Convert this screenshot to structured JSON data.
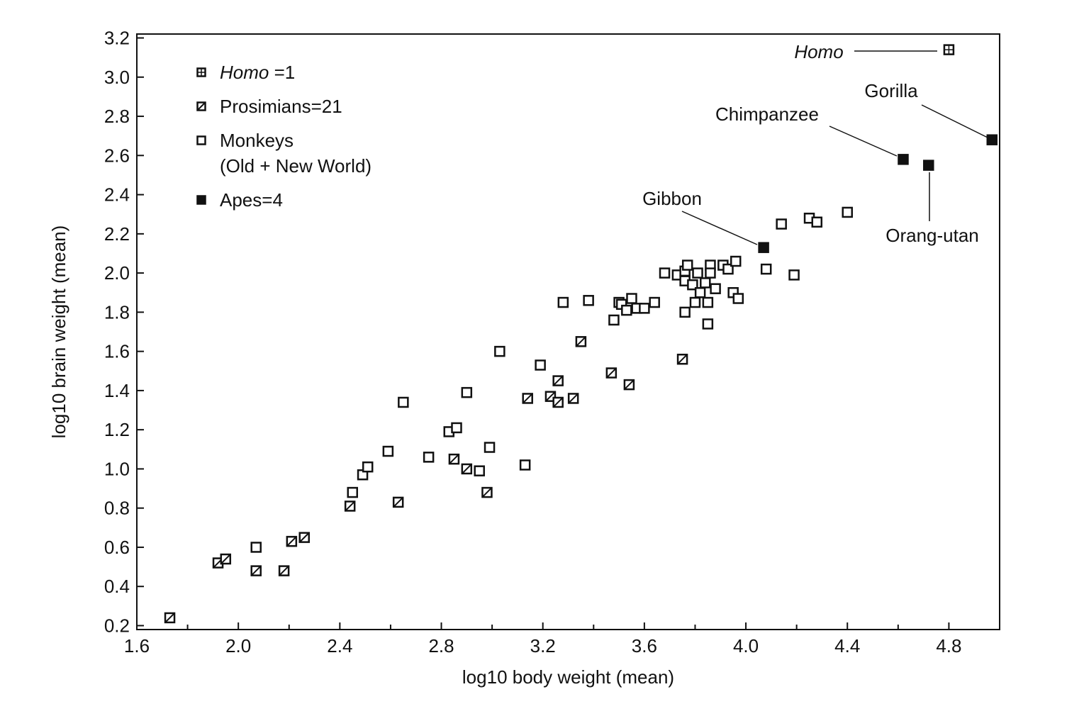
{
  "chart_data": {
    "type": "scatter",
    "title": "",
    "xlabel": "log10 body weight (mean)",
    "ylabel": "log10 brain weight (mean)",
    "xlim": [
      1.6,
      5.0
    ],
    "ylim": [
      0.18,
      3.22
    ],
    "xticks": [
      "1.6",
      "2.0",
      "2.4",
      "2.8",
      "3.2",
      "3.6",
      "4.0",
      "4.4",
      "4.8"
    ],
    "yticks": [
      "0.2",
      "0.4",
      "0.6",
      "0.8",
      "1.0",
      "1.2",
      "1.4",
      "1.6",
      "1.8",
      "2.0",
      "2.2",
      "2.4",
      "2.6",
      "2.8",
      "3.0",
      "3.2"
    ],
    "grid": false,
    "legend_placement": "top-left",
    "legend": [
      {
        "marker": "crossed-square",
        "italic": "Homo",
        "text": " =1"
      },
      {
        "marker": "hatched-square",
        "italic": "",
        "text": "Prosimians=21"
      },
      {
        "marker": "open-square",
        "italic": "",
        "text": "Monkeys",
        "text2": "(Old + New World)"
      },
      {
        "marker": "filled-square",
        "italic": "",
        "text": "Apes=4"
      }
    ],
    "series": [
      {
        "name": "Homo",
        "marker": "crossed-square",
        "points": [
          [
            4.8,
            3.14
          ]
        ]
      },
      {
        "name": "Prosimians",
        "marker": "hatched-square",
        "points": [
          [
            1.73,
            0.24
          ],
          [
            1.92,
            0.52
          ],
          [
            1.95,
            0.54
          ],
          [
            2.07,
            0.48
          ],
          [
            2.18,
            0.48
          ],
          [
            2.21,
            0.63
          ],
          [
            2.26,
            0.65
          ],
          [
            2.44,
            0.81
          ],
          [
            2.63,
            0.83
          ],
          [
            2.85,
            1.05
          ],
          [
            2.9,
            1.0
          ],
          [
            2.98,
            0.88
          ],
          [
            3.14,
            1.36
          ],
          [
            3.23,
            1.37
          ],
          [
            3.26,
            1.34
          ],
          [
            3.26,
            1.45
          ],
          [
            3.32,
            1.36
          ],
          [
            3.35,
            1.65
          ],
          [
            3.47,
            1.49
          ],
          [
            3.54,
            1.43
          ],
          [
            3.75,
            1.56
          ]
        ]
      },
      {
        "name": "Monkeys",
        "marker": "open-square",
        "points": [
          [
            2.07,
            0.6
          ],
          [
            2.45,
            0.88
          ],
          [
            2.49,
            0.97
          ],
          [
            2.51,
            1.01
          ],
          [
            2.59,
            1.09
          ],
          [
            2.65,
            1.34
          ],
          [
            2.75,
            1.06
          ],
          [
            2.83,
            1.19
          ],
          [
            2.86,
            1.21
          ],
          [
            2.9,
            1.39
          ],
          [
            2.95,
            0.99
          ],
          [
            2.99,
            1.11
          ],
          [
            3.03,
            1.6
          ],
          [
            3.13,
            1.02
          ],
          [
            3.19,
            1.53
          ],
          [
            3.28,
            1.85
          ],
          [
            3.38,
            1.86
          ],
          [
            3.48,
            1.76
          ],
          [
            3.5,
            1.85
          ],
          [
            3.51,
            1.84
          ],
          [
            3.53,
            1.81
          ],
          [
            3.55,
            1.87
          ],
          [
            3.57,
            1.82
          ],
          [
            3.6,
            1.82
          ],
          [
            3.64,
            1.85
          ],
          [
            3.68,
            2.0
          ],
          [
            3.73,
            1.99
          ],
          [
            3.76,
            1.8
          ],
          [
            3.76,
            1.96
          ],
          [
            3.76,
            2.01
          ],
          [
            3.77,
            2.04
          ],
          [
            3.79,
            1.94
          ],
          [
            3.8,
            1.85
          ],
          [
            3.81,
            2.0
          ],
          [
            3.82,
            1.9
          ],
          [
            3.84,
            1.95
          ],
          [
            3.85,
            1.85
          ],
          [
            3.85,
            1.74
          ],
          [
            3.86,
            2.04
          ],
          [
            3.86,
            2.0
          ],
          [
            3.88,
            1.92
          ],
          [
            3.91,
            2.04
          ],
          [
            3.93,
            2.02
          ],
          [
            3.95,
            1.9
          ],
          [
            3.96,
            2.06
          ],
          [
            3.97,
            1.87
          ],
          [
            4.08,
            2.02
          ],
          [
            4.14,
            2.25
          ],
          [
            4.19,
            1.99
          ],
          [
            4.25,
            2.28
          ],
          [
            4.28,
            2.26
          ],
          [
            4.4,
            2.31
          ]
        ]
      },
      {
        "name": "Apes",
        "marker": "filled-square",
        "points": [
          [
            4.07,
            2.13
          ],
          [
            4.62,
            2.58
          ],
          [
            4.72,
            2.55
          ],
          [
            4.97,
            2.68
          ]
        ]
      }
    ],
    "annotations": [
      {
        "text": "Homo",
        "italic": true,
        "target": [
          4.8,
          3.14
        ]
      },
      {
        "text": "Gorilla",
        "italic": false,
        "target": [
          4.97,
          2.68
        ]
      },
      {
        "text": "Chimpanzee",
        "italic": false,
        "target": [
          4.62,
          2.58
        ]
      },
      {
        "text": "Gibbon",
        "italic": false,
        "target": [
          4.07,
          2.13
        ]
      },
      {
        "text": "Orang-utan",
        "italic": false,
        "target": [
          4.72,
          2.55
        ]
      }
    ]
  }
}
